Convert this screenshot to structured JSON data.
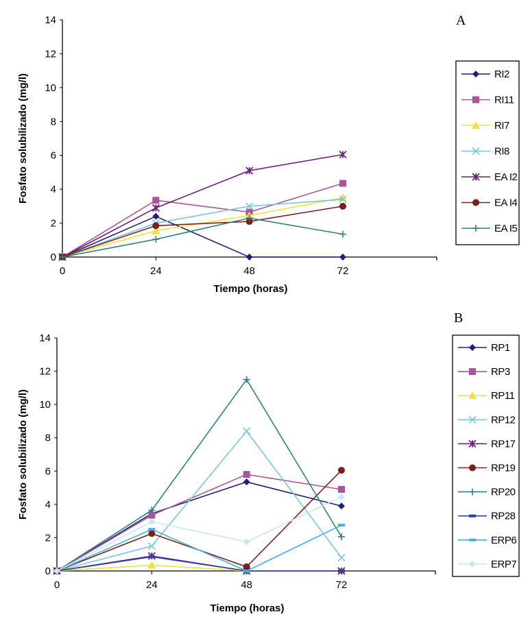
{
  "chart_data": [
    {
      "type": "line",
      "panel_label": "A",
      "xlabel": "Tiempo (horas)",
      "ylabel": "Fosfato solubilizado (mg/l)",
      "x": [
        0,
        24,
        48,
        72
      ],
      "x_ticks": [
        "0",
        "24",
        "48",
        "72"
      ],
      "ylim": [
        0,
        14
      ],
      "y_ticks": [
        "0",
        "2",
        "4",
        "6",
        "8",
        "10",
        "12",
        "14"
      ],
      "grid": false,
      "legend_position": "right",
      "series": [
        {
          "name": "RI2",
          "values": [
            0,
            2.4,
            0,
            0
          ],
          "color": "#1f1f78",
          "marker": "diamond"
        },
        {
          "name": "RI11",
          "values": [
            0,
            3.35,
            2.65,
            4.35
          ],
          "color": "#a9559b",
          "marker": "square"
        },
        {
          "name": "RI7",
          "values": [
            0,
            1.55,
            2.45,
            3.5
          ],
          "color": "#f0e040",
          "marker": "triangle"
        },
        {
          "name": "RI8",
          "values": [
            0,
            2.0,
            3.0,
            3.4
          ],
          "color": "#7ac6d8",
          "marker": "x"
        },
        {
          "name": "EA I2",
          "values": [
            0,
            2.9,
            5.1,
            6.05
          ],
          "color": "#6a1f7a",
          "marker": "asterisk"
        },
        {
          "name": "EA I4",
          "values": [
            0,
            1.85,
            2.1,
            3.0
          ],
          "color": "#7a1f1f",
          "marker": "circle"
        },
        {
          "name": "EA I5",
          "values": [
            0,
            1.05,
            2.3,
            1.35
          ],
          "color": "#2f8080",
          "marker": "plus"
        }
      ]
    },
    {
      "type": "line",
      "panel_label": "B",
      "xlabel": "Tiempo (horas)",
      "ylabel": "Fosfato solubilizado (mg/l)",
      "x": [
        0,
        24,
        48,
        72
      ],
      "x_ticks": [
        "0",
        "24",
        "48",
        "72"
      ],
      "ylim": [
        0,
        14
      ],
      "y_ticks": [
        "0",
        "2",
        "4",
        "6",
        "8",
        "10",
        "12",
        "14"
      ],
      "grid": false,
      "legend_position": "right",
      "series": [
        {
          "name": "RP1",
          "values": [
            0,
            3.45,
            5.35,
            3.9
          ],
          "color": "#1f1f78",
          "marker": "diamond"
        },
        {
          "name": "RP3",
          "values": [
            0,
            3.35,
            5.8,
            4.9
          ],
          "color": "#a9559b",
          "marker": "square"
        },
        {
          "name": "RP11",
          "values": [
            0,
            0.35,
            0,
            0
          ],
          "color": "#f0e040",
          "marker": "triangle"
        },
        {
          "name": "RP12",
          "values": [
            0,
            1.5,
            8.4,
            0.8
          ],
          "color": "#7ac6d8",
          "marker": "x"
        },
        {
          "name": "RP17",
          "values": [
            0,
            0.9,
            0,
            0
          ],
          "color": "#6a1f7a",
          "marker": "asterisk"
        },
        {
          "name": "RP19",
          "values": [
            0,
            2.25,
            0.25,
            6.05
          ],
          "color": "#7a1f1f",
          "marker": "circle"
        },
        {
          "name": "RP20",
          "values": [
            0,
            3.65,
            11.5,
            2.05
          ],
          "color": "#2f8080",
          "marker": "plus"
        },
        {
          "name": "RP28",
          "values": [
            0,
            0.85,
            0,
            0
          ],
          "color": "#3040a0",
          "marker": "dash"
        },
        {
          "name": "ERP6",
          "values": [
            0,
            2.5,
            0,
            2.75
          ],
          "color": "#40b0e0",
          "marker": "dash"
        },
        {
          "name": "ERP7",
          "values": [
            0,
            2.95,
            1.75,
            4.45
          ],
          "color": "#cce6f0",
          "marker": "diamond"
        }
      ]
    }
  ]
}
